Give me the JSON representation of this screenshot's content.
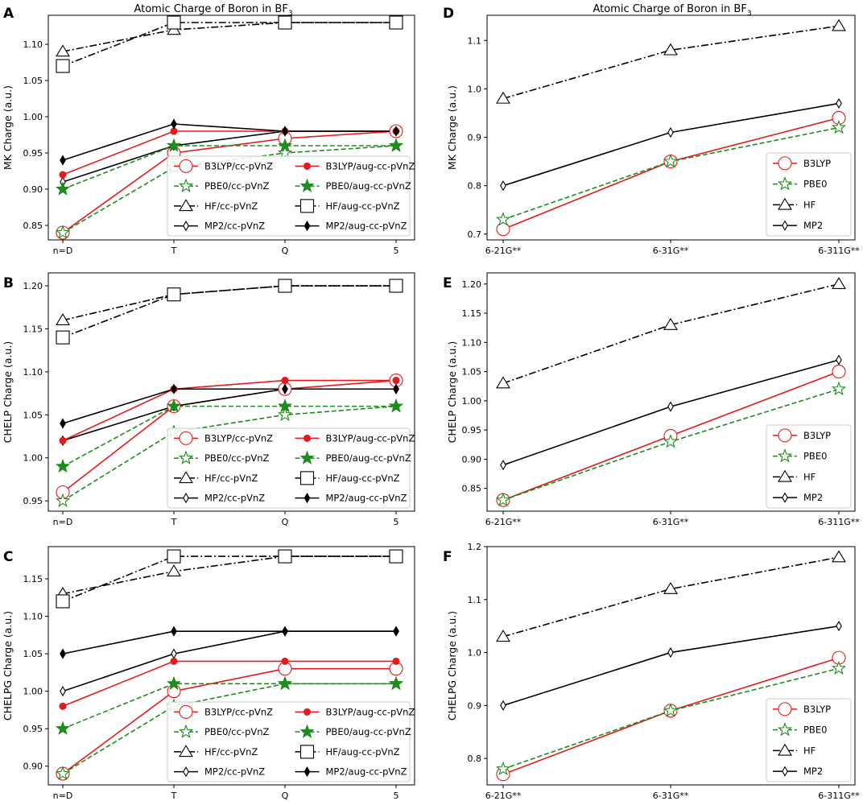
{
  "figure": {
    "title_left": "Atomic Charge of Boron in BF",
    "title_right": "Atomic Charge of Boron in BF",
    "title_subscript": "3"
  },
  "colors": {
    "red": "#e41a1c",
    "green": "#1e8c1e",
    "black": "#000000"
  },
  "chart_data": [
    {
      "type": "line",
      "panel": "A",
      "title": "Atomic Charge of Boron in BF",
      "xlabel": "",
      "ylabel": "MK Charge (a.u.)",
      "categories": [
        "n=D",
        "T",
        "Q",
        "5"
      ],
      "ylim": [
        0.83,
        1.14
      ],
      "yticks": [
        "0.85",
        "0.90",
        "0.95",
        "1.00",
        "1.05",
        "1.10"
      ],
      "legend": "lower-right",
      "legend_cols": 2,
      "series": [
        {
          "name": "B3LYP/cc-pVnZ",
          "values": [
            0.84,
            0.95,
            0.97,
            0.98
          ],
          "color": "#e41a1c",
          "dash": "solid",
          "marker": "circle-open"
        },
        {
          "name": "PBE0/cc-pVnZ",
          "values": [
            0.84,
            0.93,
            0.95,
            0.96
          ],
          "color": "#1e8c1e",
          "dash": "dashed",
          "marker": "star-open"
        },
        {
          "name": "HF/cc-pVnZ",
          "values": [
            1.09,
            1.12,
            1.13,
            1.13
          ],
          "color": "#000000",
          "dash": "dashdot",
          "marker": "triangle-open"
        },
        {
          "name": "MP2/cc-pVnZ",
          "values": [
            0.91,
            0.96,
            0.98,
            0.98
          ],
          "color": "#000000",
          "dash": "solid",
          "marker": "thin-diamond-open"
        },
        {
          "name": "B3LYP/aug-cc-pVnZ",
          "values": [
            0.92,
            0.98,
            0.98,
            0.98
          ],
          "color": "#e41a1c",
          "dash": "solid",
          "marker": "circle-filled"
        },
        {
          "name": "PBE0/aug-cc-pVnZ",
          "values": [
            0.9,
            0.96,
            0.96,
            0.96
          ],
          "color": "#1e8c1e",
          "dash": "dashed",
          "marker": "star-filled"
        },
        {
          "name": "HF/aug-cc-pVnZ",
          "values": [
            1.07,
            1.13,
            1.13,
            1.13
          ],
          "color": "#000000",
          "dash": "dashdot",
          "marker": "square-open"
        },
        {
          "name": "MP2/aug-cc-pVnZ",
          "values": [
            0.94,
            0.99,
            0.98,
            0.98
          ],
          "color": "#000000",
          "dash": "solid",
          "marker": "thin-diamond-filled"
        }
      ]
    },
    {
      "type": "line",
      "panel": "B",
      "title": "",
      "xlabel": "",
      "ylabel": "CHELP Charge (a.u.)",
      "categories": [
        "n=D",
        "T",
        "Q",
        "5"
      ],
      "ylim": [
        0.938,
        1.215
      ],
      "yticks": [
        "0.95",
        "1.00",
        "1.05",
        "1.10",
        "1.15",
        "1.20"
      ],
      "legend": "lower-right",
      "legend_cols": 2,
      "series": [
        {
          "name": "B3LYP/cc-pVnZ",
          "values": [
            0.96,
            1.06,
            1.08,
            1.09
          ],
          "color": "#e41a1c",
          "dash": "solid",
          "marker": "circle-open"
        },
        {
          "name": "PBE0/cc-pVnZ",
          "values": [
            0.95,
            1.03,
            1.05,
            1.06
          ],
          "color": "#1e8c1e",
          "dash": "dashed",
          "marker": "star-open"
        },
        {
          "name": "HF/cc-pVnZ",
          "values": [
            1.16,
            1.19,
            1.2,
            1.2
          ],
          "color": "#000000",
          "dash": "dashdot",
          "marker": "triangle-open"
        },
        {
          "name": "MP2/cc-pVnZ",
          "values": [
            1.02,
            1.06,
            1.08,
            1.08
          ],
          "color": "#000000",
          "dash": "solid",
          "marker": "thin-diamond-open"
        },
        {
          "name": "B3LYP/aug-cc-pVnZ",
          "values": [
            1.02,
            1.08,
            1.09,
            1.09
          ],
          "color": "#e41a1c",
          "dash": "solid",
          "marker": "circle-filled"
        },
        {
          "name": "PBE0/aug-cc-pVnZ",
          "values": [
            0.99,
            1.06,
            1.06,
            1.06
          ],
          "color": "#1e8c1e",
          "dash": "dashed",
          "marker": "star-filled"
        },
        {
          "name": "HF/aug-cc-pVnZ",
          "values": [
            1.14,
            1.19,
            1.2,
            1.2
          ],
          "color": "#000000",
          "dash": "dashdot",
          "marker": "square-open"
        },
        {
          "name": "MP2/aug-cc-pVnZ",
          "values": [
            1.04,
            1.08,
            1.08,
            1.08
          ],
          "color": "#000000",
          "dash": "solid",
          "marker": "thin-diamond-filled"
        }
      ]
    },
    {
      "type": "line",
      "panel": "C",
      "title": "",
      "xlabel": "",
      "ylabel": "CHELPG Charge (a.u.)",
      "categories": [
        "n=D",
        "T",
        "Q",
        "5"
      ],
      "ylim": [
        0.875,
        1.193
      ],
      "yticks": [
        "0.90",
        "0.95",
        "1.00",
        "1.05",
        "1.10",
        "1.15"
      ],
      "legend": "lower-right",
      "legend_cols": 2,
      "series": [
        {
          "name": "B3LYP/cc-pVnZ",
          "values": [
            0.89,
            1.0,
            1.03,
            1.03
          ],
          "color": "#e41a1c",
          "dash": "solid",
          "marker": "circle-open"
        },
        {
          "name": "PBE0/cc-pVnZ",
          "values": [
            0.89,
            0.98,
            1.01,
            1.01
          ],
          "color": "#1e8c1e",
          "dash": "dashed",
          "marker": "star-open"
        },
        {
          "name": "HF/cc-pVnZ",
          "values": [
            1.13,
            1.16,
            1.18,
            1.18
          ],
          "color": "#000000",
          "dash": "dashdot",
          "marker": "triangle-open"
        },
        {
          "name": "MP2/cc-pVnZ",
          "values": [
            1.0,
            1.05,
            1.08,
            1.08
          ],
          "color": "#000000",
          "dash": "solid",
          "marker": "thin-diamond-open"
        },
        {
          "name": "B3LYP/aug-cc-pVnZ",
          "values": [
            0.98,
            1.04,
            1.04,
            1.04
          ],
          "color": "#e41a1c",
          "dash": "solid",
          "marker": "circle-filled"
        },
        {
          "name": "PBE0/aug-cc-pVnZ",
          "values": [
            0.95,
            1.01,
            1.01,
            1.01
          ],
          "color": "#1e8c1e",
          "dash": "dashed",
          "marker": "star-filled"
        },
        {
          "name": "HF/aug-cc-pVnZ",
          "values": [
            1.12,
            1.18,
            1.18,
            1.18
          ],
          "color": "#000000",
          "dash": "dashdot",
          "marker": "square-open"
        },
        {
          "name": "MP2/aug-cc-pVnZ",
          "values": [
            1.05,
            1.08,
            1.08,
            1.08
          ],
          "color": "#000000",
          "dash": "solid",
          "marker": "thin-diamond-filled"
        }
      ]
    },
    {
      "type": "line",
      "panel": "D",
      "title": "Atomic Charge of Boron in BF",
      "xlabel": "",
      "ylabel": "MK Charge (a.u.)",
      "categories": [
        "6-21G**",
        "6-31G**",
        "6-311G**"
      ],
      "ylim": [
        0.688,
        1.152
      ],
      "yticks": [
        "0.7",
        "0.8",
        "0.9",
        "1.0",
        "1.1"
      ],
      "legend": "lower-right",
      "legend_cols": 1,
      "series": [
        {
          "name": "B3LYP",
          "values": [
            0.71,
            0.85,
            0.94
          ],
          "color": "#e41a1c",
          "dash": "solid",
          "marker": "circle-open"
        },
        {
          "name": "PBE0",
          "values": [
            0.73,
            0.85,
            0.92
          ],
          "color": "#1e8c1e",
          "dash": "dashed",
          "marker": "star-open"
        },
        {
          "name": "HF",
          "values": [
            0.98,
            1.08,
            1.13
          ],
          "color": "#000000",
          "dash": "dashdot",
          "marker": "triangle-open"
        },
        {
          "name": "MP2",
          "values": [
            0.8,
            0.91,
            0.97
          ],
          "color": "#000000",
          "dash": "solid",
          "marker": "thin-diamond-open"
        }
      ]
    },
    {
      "type": "line",
      "panel": "E",
      "title": "",
      "xlabel": "",
      "ylabel": "CHELP Charge (a.u.)",
      "categories": [
        "6-21G**",
        "6-31G**",
        "6-311G**"
      ],
      "ylim": [
        0.811,
        1.219
      ],
      "yticks": [
        "0.85",
        "0.90",
        "0.95",
        "1.00",
        "1.05",
        "1.10",
        "1.15",
        "1.20"
      ],
      "legend": "lower-right",
      "legend_cols": 1,
      "series": [
        {
          "name": "B3LYP",
          "values": [
            0.83,
            0.94,
            1.05
          ],
          "color": "#e41a1c",
          "dash": "solid",
          "marker": "circle-open"
        },
        {
          "name": "PBE0",
          "values": [
            0.83,
            0.93,
            1.02
          ],
          "color": "#1e8c1e",
          "dash": "dashed",
          "marker": "star-open"
        },
        {
          "name": "HF",
          "values": [
            1.03,
            1.13,
            1.2
          ],
          "color": "#000000",
          "dash": "dashdot",
          "marker": "triangle-open"
        },
        {
          "name": "MP2",
          "values": [
            0.89,
            0.99,
            1.07
          ],
          "color": "#000000",
          "dash": "solid",
          "marker": "thin-diamond-open"
        }
      ]
    },
    {
      "type": "line",
      "panel": "F",
      "title": "",
      "xlabel": "",
      "ylabel": "CHELPG Charge (a.u.)",
      "categories": [
        "6-21G**",
        "6-31G**",
        "6-311G**"
      ],
      "ylim": [
        0.75,
        1.2
      ],
      "yticks": [
        "0.8",
        "0.9",
        "1.0",
        "1.1",
        "1.2"
      ],
      "legend": "lower-right",
      "legend_cols": 1,
      "series": [
        {
          "name": "B3LYP",
          "values": [
            0.77,
            0.89,
            0.99
          ],
          "color": "#e41a1c",
          "dash": "solid",
          "marker": "circle-open"
        },
        {
          "name": "PBE0",
          "values": [
            0.78,
            0.89,
            0.97
          ],
          "color": "#1e8c1e",
          "dash": "dashed",
          "marker": "star-open"
        },
        {
          "name": "HF",
          "values": [
            1.03,
            1.12,
            1.18
          ],
          "color": "#000000",
          "dash": "dashdot",
          "marker": "triangle-open"
        },
        {
          "name": "MP2",
          "values": [
            0.9,
            1.0,
            1.05
          ],
          "color": "#000000",
          "dash": "solid",
          "marker": "thin-diamond-open"
        }
      ]
    }
  ]
}
